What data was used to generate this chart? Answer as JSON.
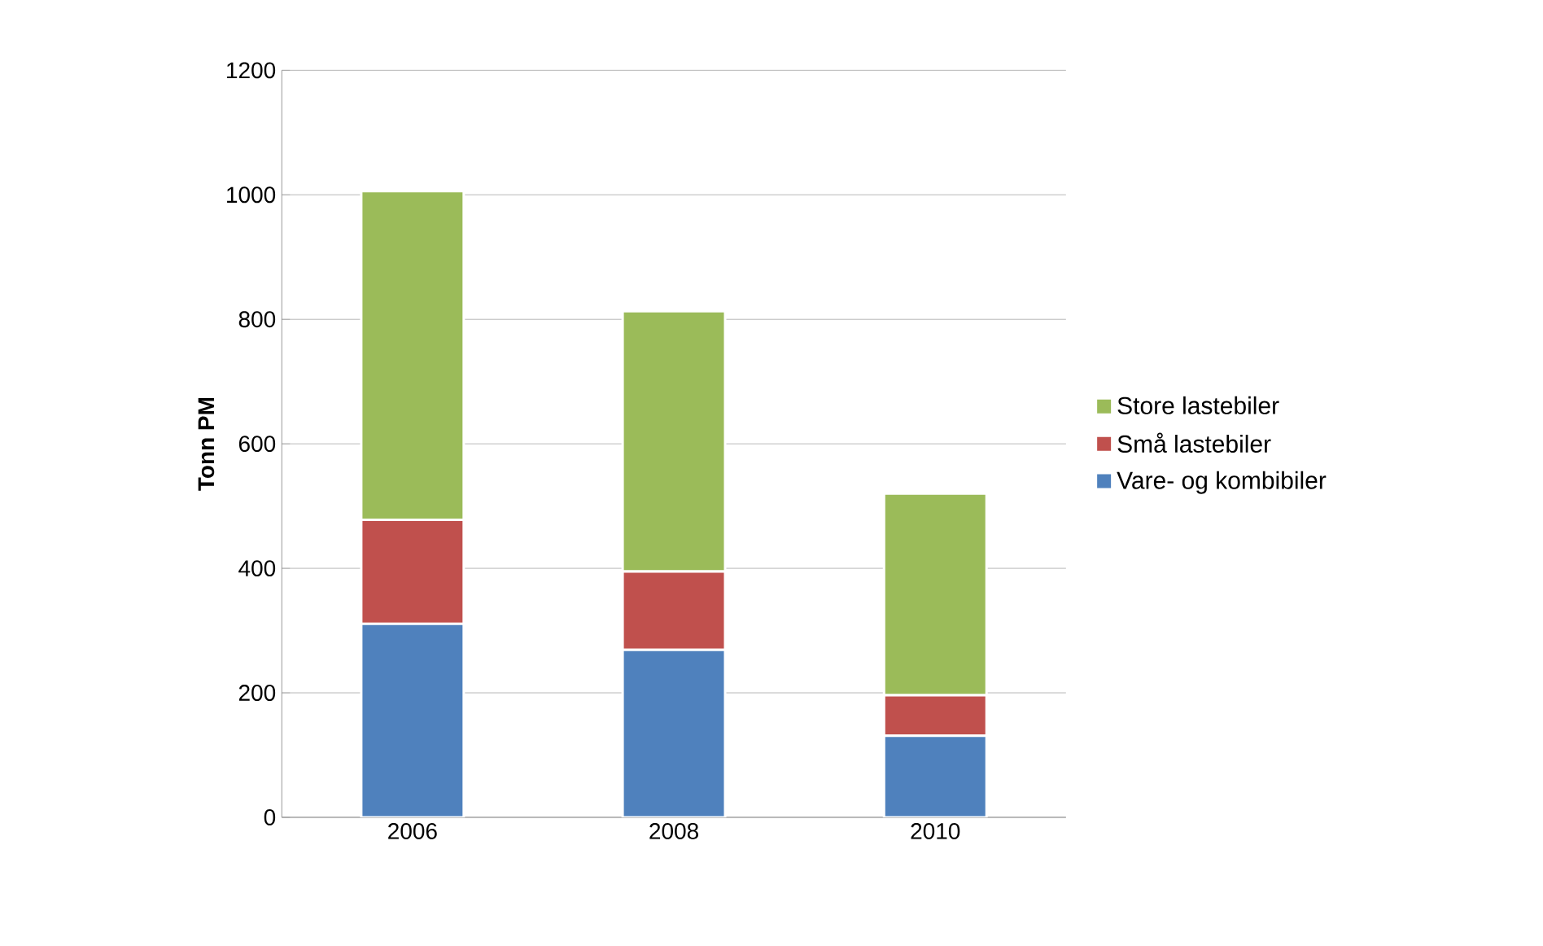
{
  "chart_data": {
    "type": "bar",
    "stacked": true,
    "ylabel": "Tonn PM",
    "categories": [
      "2006",
      "2008",
      "2010"
    ],
    "series": [
      {
        "name": "Vare- og kombibiler",
        "color": "#4f81bd",
        "values": [
          311,
          269,
          131
        ]
      },
      {
        "name": "Små lastebiler",
        "color": "#c0504d",
        "values": [
          167,
          126,
          65
        ]
      },
      {
        "name": "Store lastebiler",
        "color": "#9bbb59",
        "values": [
          528,
          418,
          324
        ]
      }
    ],
    "ylim": [
      0,
      1200
    ],
    "yticks": [
      0,
      200,
      400,
      600,
      800,
      1000,
      1200
    ],
    "grid": "y",
    "legend": "right"
  }
}
